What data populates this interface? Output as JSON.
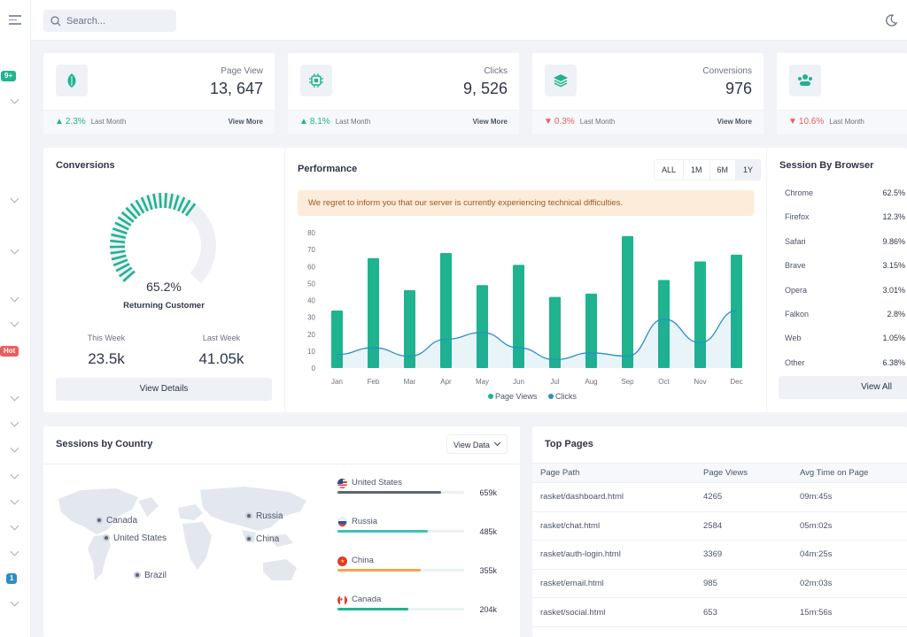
{
  "search": {
    "placeholder": "Search..."
  },
  "sidebar": {
    "badges": [
      "9+",
      "Hot",
      "1"
    ]
  },
  "kpis": [
    {
      "label": "Page View",
      "value": "13, 647",
      "change": "2.3%",
      "dir": "up",
      "period": "Last Month",
      "link": "View More",
      "icon": "leaf-icon"
    },
    {
      "label": "Clicks",
      "value": "9, 526",
      "change": "8.1%",
      "dir": "up",
      "period": "Last Month",
      "link": "View More",
      "icon": "chip-icon"
    },
    {
      "label": "Conversions",
      "value": "976",
      "change": "0.3%",
      "dir": "down",
      "period": "Last Month",
      "link": "View More",
      "icon": "layers-icon"
    },
    {
      "label": "",
      "value": "",
      "change": "10.6%",
      "dir": "down",
      "period": "Last Month",
      "link": "",
      "icon": "users-icon"
    }
  ],
  "conversions": {
    "title": "Conversions",
    "percent": "65.2%",
    "percent_value": 65.2,
    "caption": "Returning Customer",
    "this_week_label": "This Week",
    "this_week": "23.5k",
    "last_week_label": "Last Week",
    "last_week": "41.05k",
    "button": "View Details"
  },
  "performance": {
    "title": "Performance",
    "ranges": [
      "ALL",
      "1M",
      "6M",
      "1Y"
    ],
    "alert": "We regret to inform you that our server is currently experiencing technical difficulties.",
    "legend": [
      "Page Views",
      "Clicks"
    ]
  },
  "chart_data": {
    "type": "bar",
    "categories": [
      "Jan",
      "Feb",
      "Mar",
      "Apr",
      "May",
      "Jun",
      "Jul",
      "Aug",
      "Sep",
      "Oct",
      "Nov",
      "Dec"
    ],
    "ylim": [
      0,
      80
    ],
    "yticks": [
      0,
      10,
      20,
      30,
      40,
      50,
      60,
      70,
      80
    ],
    "series": [
      {
        "name": "Page Views",
        "type": "bar",
        "color": "#1fb38e",
        "values": [
          34,
          65,
          46,
          68,
          49,
          61,
          42,
          44,
          78,
          52,
          63,
          67
        ]
      },
      {
        "name": "Clicks",
        "type": "line",
        "color": "#2b8fc7",
        "values": [
          8,
          12,
          7,
          17,
          21,
          12,
          5,
          9,
          7,
          29,
          15,
          34
        ]
      }
    ]
  },
  "browsers": {
    "title": "Session By Browser",
    "items": [
      {
        "name": "Chrome",
        "value": "62.5%"
      },
      {
        "name": "Firefox",
        "value": "12.3%"
      },
      {
        "name": "Safari",
        "value": "9.86%"
      },
      {
        "name": "Brave",
        "value": "3.15%"
      },
      {
        "name": "Opera",
        "value": "3.01%"
      },
      {
        "name": "Falkon",
        "value": "2.8%"
      },
      {
        "name": "Web",
        "value": "1.05%"
      },
      {
        "name": "Other",
        "value": "6.38%"
      }
    ],
    "button": "View All"
  },
  "countries": {
    "title": "Sessions by Country",
    "dropdown": "View Data",
    "map_labels": [
      "Canada",
      "United States",
      "Brazil",
      "Russia",
      "China"
    ],
    "items": [
      {
        "name": "United States",
        "value": "659k",
        "percent": 82,
        "color": "#5a6577"
      },
      {
        "name": "Russia",
        "value": "485k",
        "percent": 71,
        "color": "#3cc2bb"
      },
      {
        "name": "China",
        "value": "355k",
        "percent": 66,
        "color": "#f4a550"
      },
      {
        "name": "Canada",
        "value": "204k",
        "percent": 56,
        "color": "#1fb38e"
      }
    ]
  },
  "top_pages": {
    "title": "Top Pages",
    "columns": [
      "Page Path",
      "Page Views",
      "Avg Time on Page"
    ],
    "rows": [
      [
        "rasket/dashboard.html",
        "4265",
        "09m:45s"
      ],
      [
        "rasket/chat.html",
        "2584",
        "05m:02s"
      ],
      [
        "rasket/auth-login.html",
        "3369",
        "04m:25s"
      ],
      [
        "rasket/email.html",
        "985",
        "02m:03s"
      ],
      [
        "rasket/social.html",
        "653",
        "15m:56s"
      ]
    ]
  }
}
